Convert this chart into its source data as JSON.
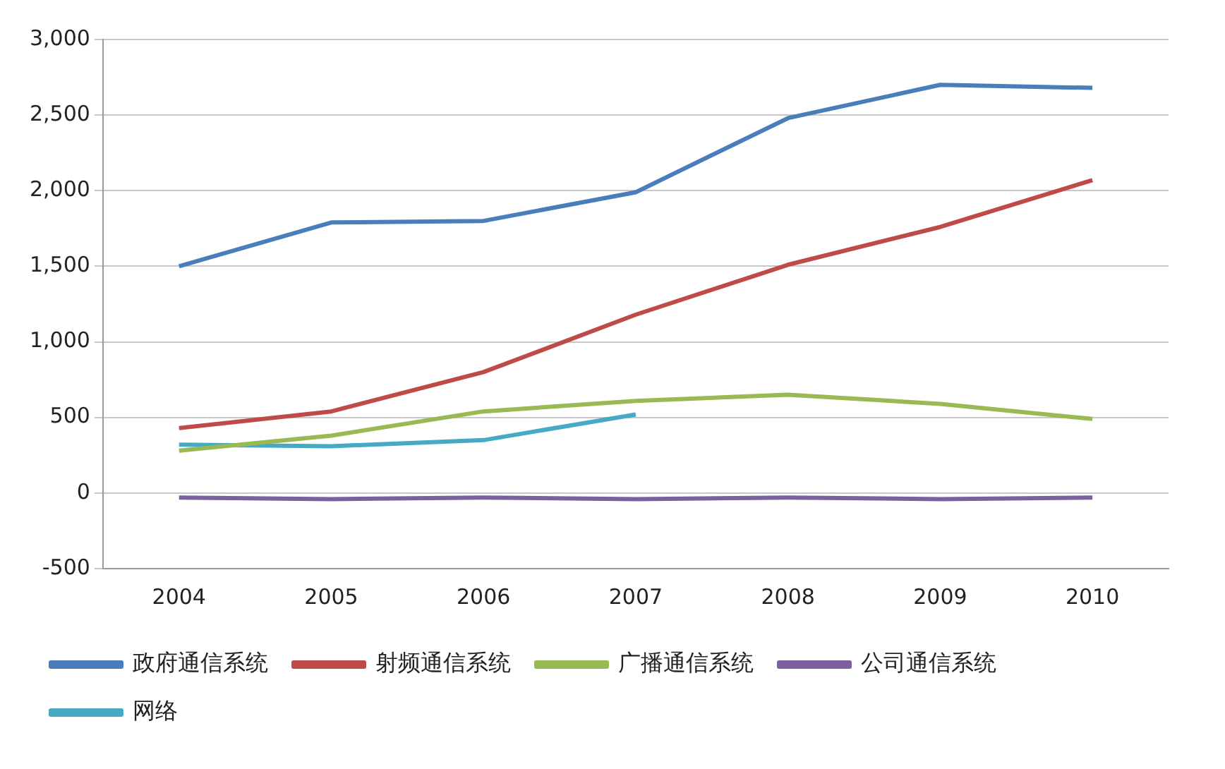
{
  "chart_data": {
    "type": "line",
    "categories": [
      "2004",
      "2005",
      "2006",
      "2007",
      "2008",
      "2009",
      "2010"
    ],
    "series": [
      {
        "name": "政府通信系统",
        "color": "#4a7ebb",
        "values": [
          1500,
          1790,
          1800,
          1990,
          2480,
          2700,
          2680
        ]
      },
      {
        "name": "射频通信系统",
        "color": "#be4b48",
        "values": [
          430,
          540,
          800,
          1180,
          1510,
          1760,
          2070
        ]
      },
      {
        "name": "广播通信系统",
        "color": "#98b954",
        "values": [
          280,
          380,
          540,
          610,
          650,
          590,
          490
        ]
      },
      {
        "name": "公司通信系统",
        "color": "#7d60a0",
        "values": [
          -30,
          -40,
          -30,
          -40,
          -30,
          -40,
          -30
        ]
      },
      {
        "name": "网络",
        "color": "#46aac5",
        "values": [
          320,
          310,
          350,
          520,
          null,
          null,
          null
        ]
      }
    ],
    "ylim": [
      -500,
      3000
    ],
    "yticks": [
      {
        "value": -500,
        "label": "-500"
      },
      {
        "value": 0,
        "label": "0"
      },
      {
        "value": 500,
        "label": "500"
      },
      {
        "value": 1000,
        "label": "1,000"
      },
      {
        "value": 1500,
        "label": "1,500"
      },
      {
        "value": 2000,
        "label": "2,000"
      },
      {
        "value": 2500,
        "label": "2,500"
      },
      {
        "value": 3000,
        "label": "3,000"
      }
    ],
    "grid": "y",
    "legend": "bottom",
    "marker": "none",
    "line_style": "solid"
  }
}
